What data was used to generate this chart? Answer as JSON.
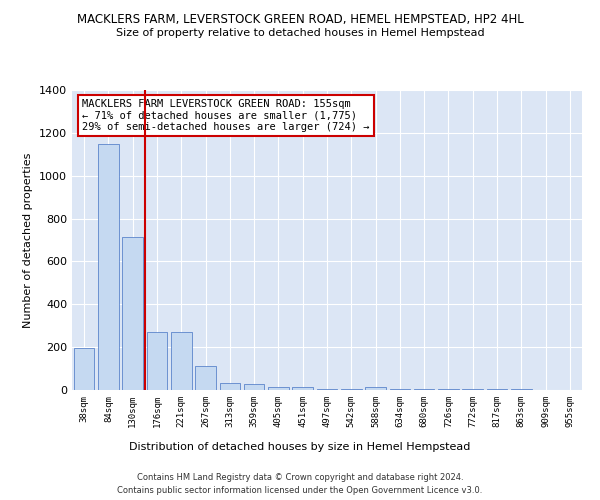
{
  "title_line1": "MACKLERS FARM, LEVERSTOCK GREEN ROAD, HEMEL HEMPSTEAD, HP2 4HL",
  "title_line2": "Size of property relative to detached houses in Hemel Hempstead",
  "xlabel": "Distribution of detached houses by size in Hemel Hempstead",
  "ylabel": "Number of detached properties",
  "footer1": "Contains HM Land Registry data © Crown copyright and database right 2024.",
  "footer2": "Contains public sector information licensed under the Open Government Licence v3.0.",
  "annotation_line1": "MACKLERS FARM LEVERSTOCK GREEN ROAD: 155sqm",
  "annotation_line2": "← 71% of detached houses are smaller (1,775)",
  "annotation_line3": "29% of semi-detached houses are larger (724) →",
  "bar_color": "#c5d9f1",
  "bar_edge_color": "#4472c4",
  "vline_color": "#cc0000",
  "background_color": "#dce6f5",
  "categories": [
    "38sqm",
    "84sqm",
    "130sqm",
    "176sqm",
    "221sqm",
    "267sqm",
    "313sqm",
    "359sqm",
    "405sqm",
    "451sqm",
    "497sqm",
    "542sqm",
    "588sqm",
    "634sqm",
    "680sqm",
    "726sqm",
    "772sqm",
    "817sqm",
    "863sqm",
    "909sqm",
    "955sqm"
  ],
  "values": [
    196,
    1150,
    715,
    270,
    270,
    110,
    35,
    28,
    15,
    14,
    6,
    6,
    15,
    6,
    5,
    4,
    3,
    3,
    3,
    2,
    2
  ],
  "ylim": [
    0,
    1400
  ],
  "yticks": [
    0,
    200,
    400,
    600,
    800,
    1000,
    1200,
    1400
  ],
  "vline_x_index": 2.5,
  "bar_width": 0.85
}
